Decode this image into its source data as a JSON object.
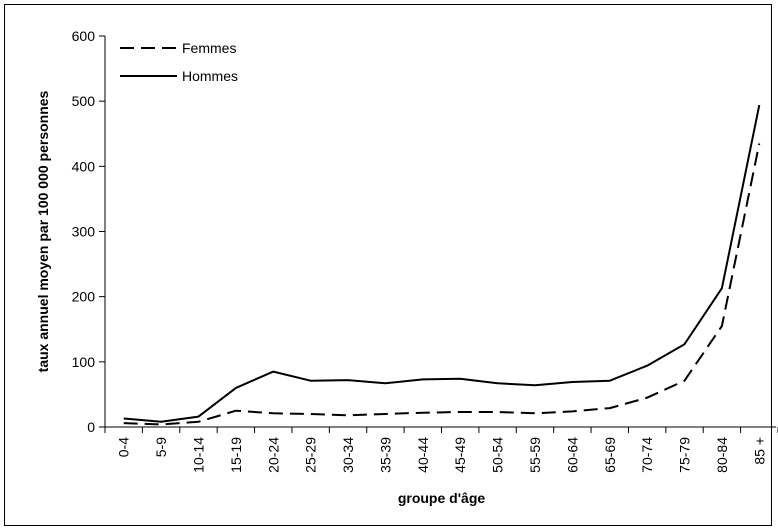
{
  "chart_data": {
    "type": "line",
    "xlabel": "groupe d'âge",
    "ylabel": "taux annuel moyen par 100 000 personnes",
    "ylim": [
      0,
      600
    ],
    "yticks": [
      0,
      100,
      200,
      300,
      400,
      500,
      600
    ],
    "grid": false,
    "legend_position": "top-left",
    "categories": [
      "0-4",
      "5-9",
      "10-14",
      "15-19",
      "20-24",
      "25-29",
      "30-34",
      "35-39",
      "40-44",
      "45-49",
      "50-54",
      "55-59",
      "60-64",
      "65-69",
      "70-74",
      "75-79",
      "80-84",
      "85 +"
    ],
    "series": [
      {
        "name": "Femmes",
        "style": "dashed",
        "color": "#000000",
        "values": [
          6,
          4,
          8,
          25,
          21,
          20,
          18,
          20,
          22,
          23,
          23,
          21,
          24,
          29,
          45,
          71,
          155,
          435
        ]
      },
      {
        "name": "Hommes",
        "style": "solid",
        "color": "#000000",
        "values": [
          13,
          8,
          16,
          60,
          85,
          71,
          72,
          67,
          73,
          74,
          67,
          64,
          69,
          71,
          94,
          127,
          213,
          494
        ]
      }
    ]
  }
}
